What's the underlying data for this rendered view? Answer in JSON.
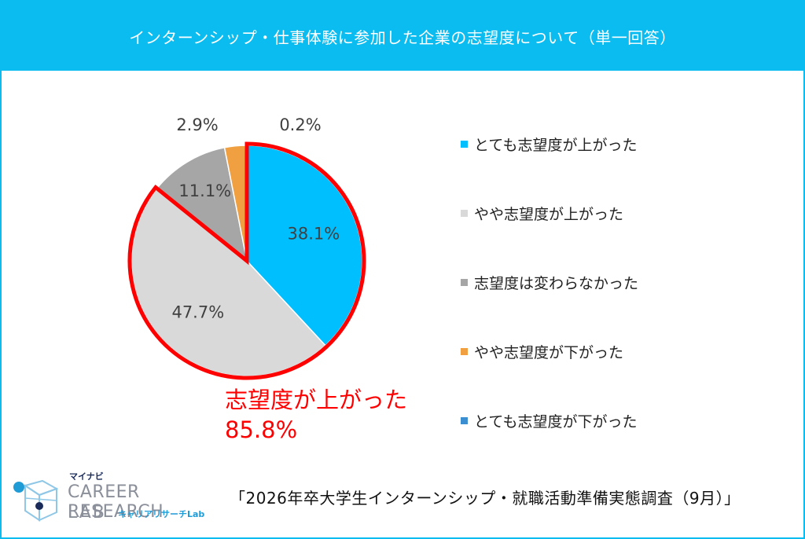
{
  "title": "インターンシップ・仕事体験に参加した企業の志望度について（単一回答）",
  "chart_data": {
    "type": "pie",
    "slices": [
      {
        "label": "とても志望度が上がった",
        "value": 38.1,
        "display": "38.1%",
        "color": "#00bfff"
      },
      {
        "label": "やや志望度が上がった",
        "value": 47.7,
        "display": "47.7%",
        "color": "#d9d9d9"
      },
      {
        "label": "志望度は変わらなかった",
        "value": 11.1,
        "display": "11.1%",
        "color": "#a6a6a6"
      },
      {
        "label": "やや志望度が下がった",
        "value": 2.9,
        "display": "2.9%",
        "color": "#f0a040"
      },
      {
        "label": "とても志望度が下がった",
        "value": 0.2,
        "display": "0.2%",
        "color": "#3b8fd0"
      }
    ],
    "legend_position": "right",
    "highlight_color": "#ff0000"
  },
  "callout": {
    "line1": "志望度が上がった",
    "line2": "85.8%"
  },
  "source": "「2026年卒大学生インターンシップ・就職活動準備実態調査（9月）」",
  "logo": {
    "top": "マイナビ",
    "main": "CAREER RESEARCH",
    "lab": "LAB",
    "sub": "キャリアリサーチLab"
  }
}
